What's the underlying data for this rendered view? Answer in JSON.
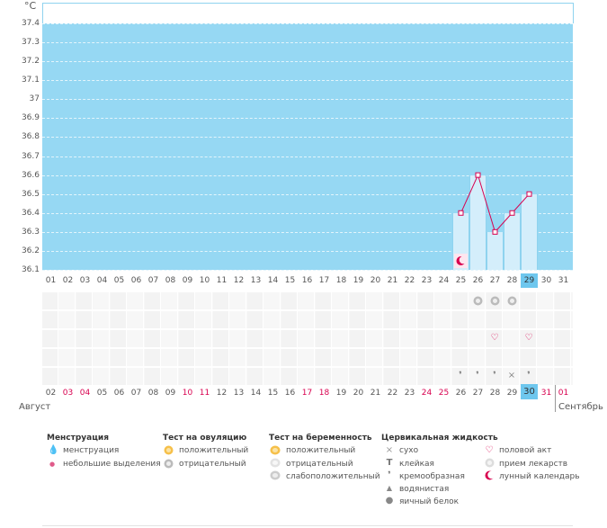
{
  "chart_data": {
    "type": "line",
    "unit": "°C",
    "y_ticks": [
      "37.4",
      "37.3",
      "37.2",
      "37.1",
      "37",
      "36.9",
      "36.8",
      "36.7",
      "36.6",
      "36.5",
      "36.4",
      "36.3",
      "36.2",
      "36.1"
    ],
    "ylim": [
      36.1,
      37.4
    ],
    "days": [
      "01",
      "02",
      "03",
      "04",
      "05",
      "06",
      "07",
      "08",
      "09",
      "10",
      "11",
      "12",
      "13",
      "14",
      "15",
      "16",
      "17",
      "18",
      "19",
      "20",
      "21",
      "22",
      "23",
      "24",
      "25",
      "26",
      "27",
      "28",
      "29",
      "30",
      "31"
    ],
    "series": [
      {
        "name": "temperature",
        "x": [
          25,
          26,
          27,
          28,
          29
        ],
        "values": [
          36.4,
          36.6,
          36.3,
          36.4,
          36.5
        ]
      }
    ],
    "selected_day": "29"
  },
  "unit_label": "°C",
  "top_days": [
    "01",
    "02",
    "03",
    "04",
    "05",
    "06",
    "07",
    "08",
    "09",
    "10",
    "11",
    "12",
    "13",
    "14",
    "15",
    "16",
    "17",
    "18",
    "19",
    "20",
    "21",
    "22",
    "23",
    "24",
    "25",
    "26",
    "27",
    "28",
    "29",
    "30",
    "31"
  ],
  "bottom_days": [
    {
      "d": "02",
      "red": false
    },
    {
      "d": "03",
      "red": true
    },
    {
      "d": "04",
      "red": true
    },
    {
      "d": "05",
      "red": false
    },
    {
      "d": "06",
      "red": false
    },
    {
      "d": "07",
      "red": false
    },
    {
      "d": "08",
      "red": false
    },
    {
      "d": "09",
      "red": false
    },
    {
      "d": "10",
      "red": true
    },
    {
      "d": "11",
      "red": true
    },
    {
      "d": "12",
      "red": false
    },
    {
      "d": "13",
      "red": false
    },
    {
      "d": "14",
      "red": false
    },
    {
      "d": "15",
      "red": false
    },
    {
      "d": "16",
      "red": false
    },
    {
      "d": "17",
      "red": true
    },
    {
      "d": "18",
      "red": true
    },
    {
      "d": "19",
      "red": false
    },
    {
      "d": "20",
      "red": false
    },
    {
      "d": "21",
      "red": false
    },
    {
      "d": "22",
      "red": false
    },
    {
      "d": "23",
      "red": false
    },
    {
      "d": "24",
      "red": true
    },
    {
      "d": "25",
      "red": true
    },
    {
      "d": "26",
      "red": false
    },
    {
      "d": "27",
      "red": false
    },
    {
      "d": "28",
      "red": false
    },
    {
      "d": "29",
      "red": false
    },
    {
      "d": "30",
      "red": false,
      "sel": true
    },
    {
      "d": "31",
      "red": true
    }
  ],
  "next_month_day": "01",
  "month_left": "Август",
  "month_right": "Сентябрь",
  "legend": {
    "menstruation": {
      "title": "Менструация",
      "items": [
        "менструация",
        "небольшие выделения"
      ]
    },
    "ovulation": {
      "title": "Тест на овуляцию",
      "items": [
        "положительный",
        "отрицательный"
      ]
    },
    "pregnancy": {
      "title": "Тест на беременность",
      "items": [
        "положительный",
        "отрицательный",
        "слабоположительный"
      ]
    },
    "cervical": {
      "title": "Цервикальная жидкость",
      "items": [
        "сухо",
        "клейкая",
        "кремообразная",
        "водянистая",
        "яичный белок"
      ]
    },
    "other": {
      "items": [
        "половой акт",
        "прием лекарств",
        "лунный календарь"
      ]
    }
  },
  "colors": {
    "chart_bg": "#96d8f3",
    "line": "#d8004f",
    "accent_red": "#d8004f",
    "selected": "#6ec7ee"
  }
}
